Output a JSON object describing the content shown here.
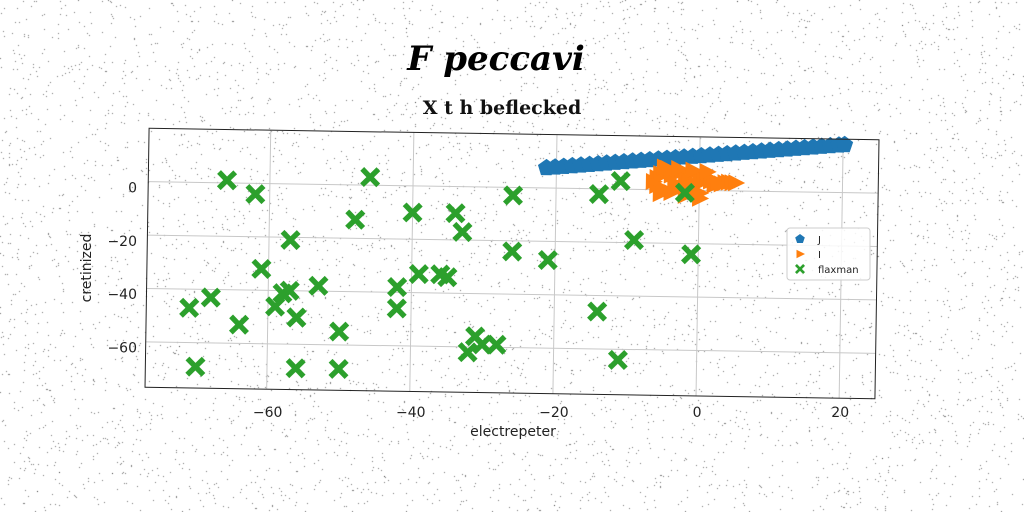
{
  "chart_data": {
    "type": "scatter",
    "suptitle": "F peccavi",
    "title": "X t h beflecked",
    "xlabel": "electrepeter",
    "ylabel": "cretinized",
    "xlim": [
      -77,
      25
    ],
    "ylim": [
      -77,
      20
    ],
    "xticks": [
      -60,
      -40,
      -20,
      0,
      20
    ],
    "yticks": [
      0,
      -20,
      -40,
      -60
    ],
    "grid": true,
    "legend_position": "center-right",
    "series": [
      {
        "name": "J",
        "marker": "pentagon",
        "color": "#1f77b4",
        "x": [
          -21.4,
          -20.2,
          -19.0,
          -17.8,
          -16.6,
          -15.4,
          -14.2,
          -13.0,
          -11.8,
          -10.6,
          -9.4,
          -8.2,
          -7.0,
          -5.8,
          -4.6,
          -3.4,
          -2.2,
          -1.0,
          0.2,
          1.4,
          2.6,
          3.8,
          5.0,
          6.2,
          7.4,
          8.6,
          9.8,
          11.0,
          12.2,
          13.4,
          14.6,
          15.8,
          17.0,
          18.2,
          19.4,
          20.2
        ],
        "y": [
          7.5,
          7.8,
          8.1,
          8.4,
          8.7,
          9.0,
          9.3,
          9.6,
          9.9,
          10.2,
          10.5,
          10.8,
          11.1,
          11.4,
          11.7,
          12.0,
          12.3,
          12.6,
          12.9,
          13.2,
          13.5,
          13.8,
          14.1,
          14.4,
          14.7,
          15.0,
          15.3,
          15.6,
          15.9,
          16.2,
          16.5,
          16.8,
          17.1,
          17.4,
          17.7,
          17.9
        ]
      },
      {
        "name": "I",
        "marker": "triangle-right",
        "color": "#ff7f0e",
        "x": [
          -6.5,
          -6.0,
          -5.5,
          -5.0,
          -4.5,
          -4.0,
          -3.5,
          -3.0,
          -2.5,
          -2.0,
          -1.5,
          -1.0,
          -0.5,
          0.0,
          0.5,
          1.0,
          1.5,
          2.0,
          2.5,
          3.0,
          3.5,
          4.0,
          4.5,
          5.0,
          -5.0,
          -3.0,
          -1.0,
          1.0,
          -4.0,
          -2.0,
          0.0,
          -6.0,
          -5.5,
          -2.0,
          -0.5,
          0.0
        ],
        "y": [
          3.0,
          4.5,
          6.0,
          0.0,
          8.0,
          5.5,
          2.5,
          1.0,
          7.0,
          4.0,
          3.0,
          6.5,
          2.0,
          3.0,
          4.0,
          5.0,
          3.5,
          2.0,
          3.0,
          2.5,
          3.0,
          3.2,
          3.0,
          3.0,
          8.5,
          8.0,
          7.5,
          7.0,
          -1.0,
          -2.0,
          -3.0,
          1.5,
          -1.5,
          0.5,
          -0.5,
          -1.0
        ]
      },
      {
        "name": "flaxman",
        "marker": "x-filled",
        "color": "#2ca02c",
        "x": [
          -66,
          -62,
          -46,
          -57,
          -61,
          -57,
          -53,
          -56,
          -48,
          -42,
          -40,
          -39,
          -36,
          -34,
          -33,
          -26,
          -26,
          -21,
          -14,
          -11,
          -9,
          -1,
          -2,
          -14,
          -11,
          -42,
          -50,
          -56,
          -59,
          -64,
          -68,
          -71,
          -70,
          -50,
          -56,
          -35,
          -31,
          -32,
          -30,
          -28,
          -58
        ],
        "y": [
          1,
          -4,
          3,
          -21,
          -32,
          -40,
          -38,
          -50,
          -13,
          -38,
          -10,
          -33,
          -33,
          -10,
          -17,
          -3,
          -24,
          -27,
          -2,
          3,
          -19,
          -24,
          -1,
          -46,
          -64,
          -46,
          -55,
          -50,
          -46,
          -53,
          -43,
          -47,
          -69,
          -69,
          -69,
          -34,
          -56,
          -62,
          -59,
          -59,
          -41
        ]
      }
    ]
  }
}
